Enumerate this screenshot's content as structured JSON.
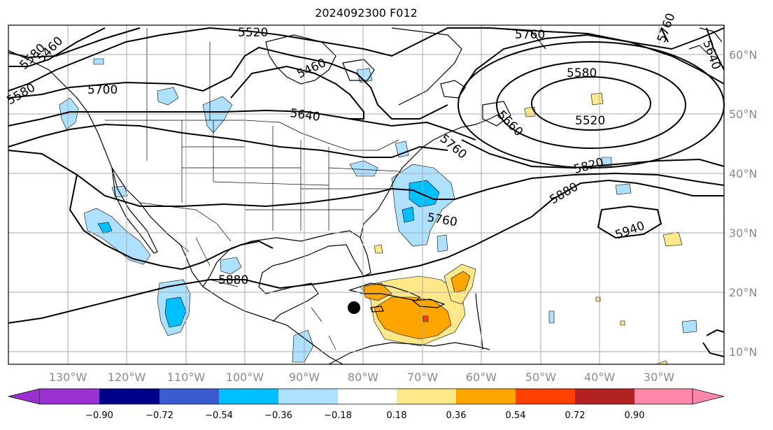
{
  "title": "2024092300 F012",
  "map": {
    "projection": "PlateCarree",
    "lon_range": [
      -140,
      -19
    ],
    "lat_range": [
      7.5,
      65
    ],
    "lon_ticks": [
      "130°W",
      "120°W",
      "110°W",
      "100°W",
      "90°W",
      "80°W",
      "70°W",
      "60°W",
      "50°W",
      "40°W",
      "30°W"
    ],
    "lat_ticks": [
      "60°N",
      "50°N",
      "40°N",
      "30°N",
      "20°N",
      "10°N"
    ],
    "contour_labels": [
      "5520",
      "5460",
      "5700",
      "5580",
      "5760",
      "5460",
      "5580",
      "5640",
      "5580",
      "5520",
      "5760",
      "5820",
      "5880",
      "5940",
      "5760",
      "5880",
      "5640",
      "5660",
      "5760"
    ],
    "storm_marker": {
      "lon": -83.5,
      "lat": 17.5
    }
  },
  "colorbar": {
    "colors": [
      "#9b30d0",
      "#00008b",
      "#3a5cd0",
      "#00bfff",
      "#aee0ff",
      "#ffffff",
      "#ffe88a",
      "#ffa500",
      "#ff4000",
      "#b22222",
      "#ff88aa"
    ],
    "tick_labels": [
      "−0.90",
      "−0.72",
      "−0.54",
      "−0.36",
      "−0.18",
      "0.18",
      "0.36",
      "0.54",
      "0.72",
      "0.90"
    ]
  }
}
